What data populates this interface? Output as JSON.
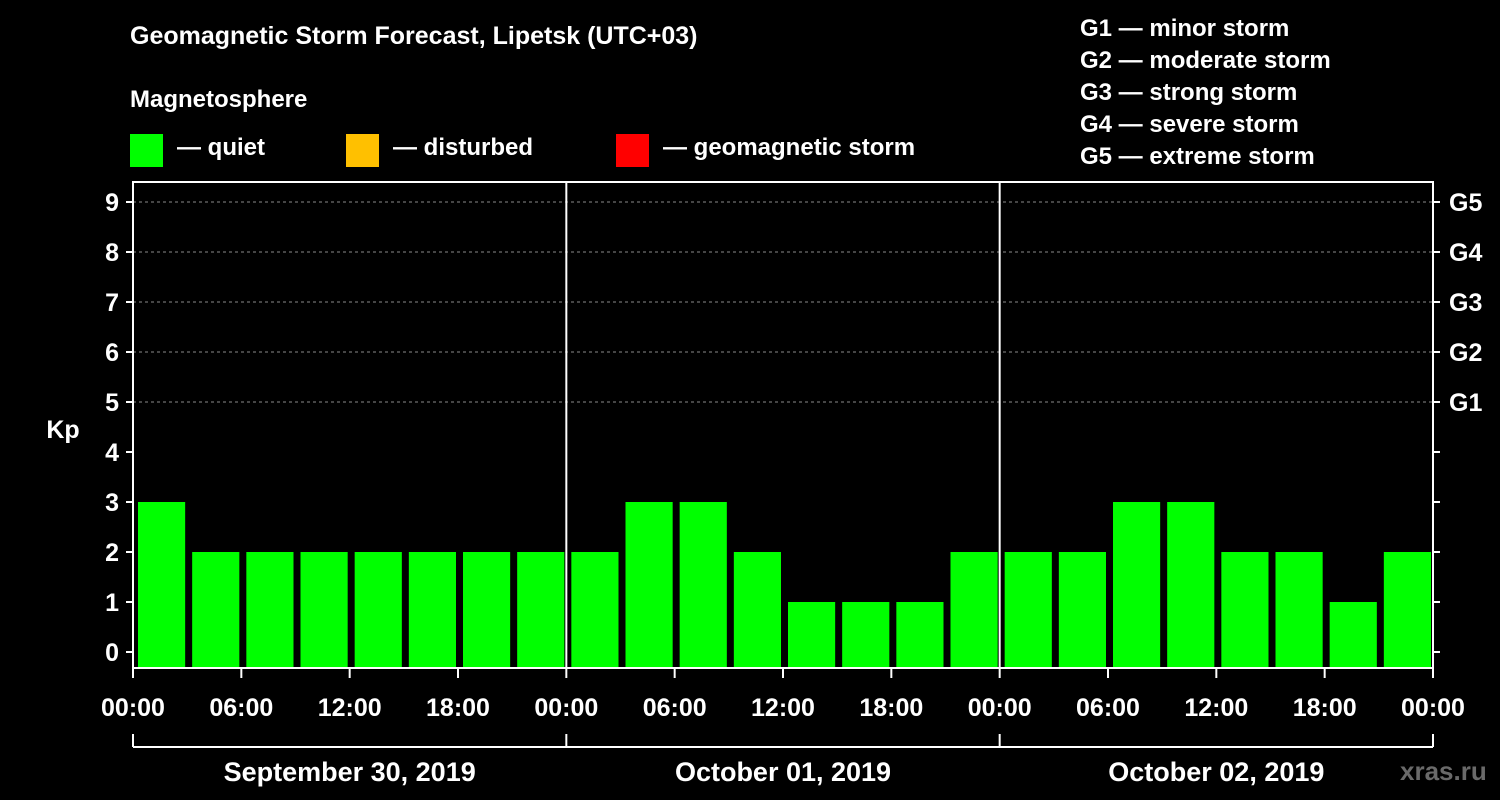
{
  "header": {
    "title": "Geomagnetic Storm Forecast, Lipetsk (UTC+03)",
    "subtitle": "Magnetosphere"
  },
  "legend": [
    {
      "label": "— quiet",
      "color": "#00ff00"
    },
    {
      "label": "— disturbed",
      "color": "#ffc000"
    },
    {
      "label": "— geomagnetic storm",
      "color": "#ff0000"
    }
  ],
  "storm_scale": [
    "G1 — minor storm",
    "G2 — moderate storm",
    "G3 — strong storm",
    "G4 — severe storm",
    "G5 — extreme storm"
  ],
  "watermark": "xras.ru",
  "chart_data": {
    "type": "bar",
    "title": "Geomagnetic Storm Forecast, Lipetsk (UTC+03)",
    "ylabel": "Kp",
    "ylim": [
      0,
      9
    ],
    "yticks": [
      "0",
      "1",
      "2",
      "3",
      "4",
      "5",
      "6",
      "7",
      "8",
      "9"
    ],
    "right_labels": [
      {
        "kp": 5,
        "label": "G1"
      },
      {
        "kp": 6,
        "label": "G2"
      },
      {
        "kp": 7,
        "label": "G3"
      },
      {
        "kp": 8,
        "label": "G4"
      },
      {
        "kp": 9,
        "label": "G5"
      }
    ],
    "xticks": [
      "00:00",
      "06:00",
      "12:00",
      "18:00",
      "00:00",
      "06:00",
      "12:00",
      "18:00",
      "00:00",
      "06:00",
      "12:00",
      "18:00",
      "00:00"
    ],
    "days": [
      "September 30, 2019",
      "October 01, 2019",
      "October 02, 2019"
    ],
    "interval_hours": 3,
    "values": [
      3,
      2,
      2,
      2,
      2,
      2,
      2,
      2,
      2,
      3,
      3,
      2,
      1,
      1,
      1,
      2,
      2,
      2,
      3,
      3,
      2,
      2,
      1,
      2
    ],
    "bar_color": "#00ff00",
    "grid": true
  }
}
